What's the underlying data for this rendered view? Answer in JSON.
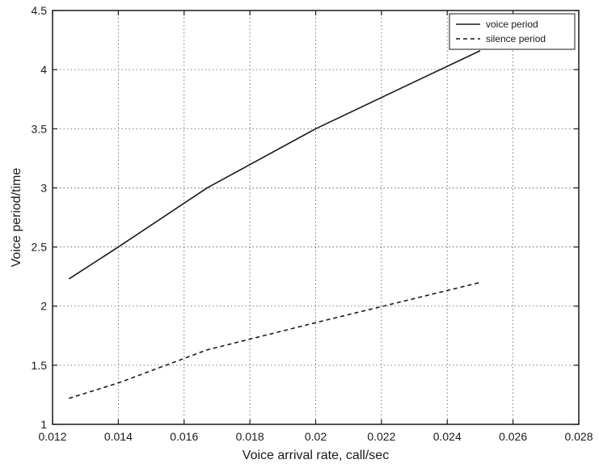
{
  "chart_data": {
    "type": "line",
    "title": "",
    "xlabel": "Voice arrival rate, call/sec",
    "ylabel": "Voice period/time",
    "xlim": [
      0.012,
      0.028
    ],
    "ylim": [
      1,
      4.5
    ],
    "xticks": [
      0.012,
      0.014,
      0.016,
      0.018,
      0.02,
      0.022,
      0.024,
      0.026,
      0.028
    ],
    "xtick_labels": [
      "0.012",
      "0.014",
      "0.016",
      "0.018",
      "0.02",
      "0.022",
      "0.024",
      "0.026",
      "0.028"
    ],
    "yticks": [
      1,
      1.5,
      2,
      2.5,
      3,
      3.5,
      4,
      4.5
    ],
    "ytick_labels": [
      "1",
      "1.5",
      "2",
      "2.5",
      "3",
      "3.5",
      "4",
      "4.5"
    ],
    "grid": true,
    "legend_position": "top-right",
    "series": [
      {
        "name": "voice period",
        "style": "solid",
        "color": "#1a1a1a",
        "x": [
          0.0125,
          0.014,
          0.0167,
          0.02,
          0.025
        ],
        "y": [
          2.23,
          2.5,
          3.0,
          3.5,
          4.16
        ]
      },
      {
        "name": "silence period",
        "style": "dashed",
        "color": "#1a1a1a",
        "x": [
          0.0125,
          0.014,
          0.0167,
          0.02,
          0.025
        ],
        "y": [
          1.22,
          1.35,
          1.63,
          1.86,
          2.2
        ]
      }
    ]
  }
}
